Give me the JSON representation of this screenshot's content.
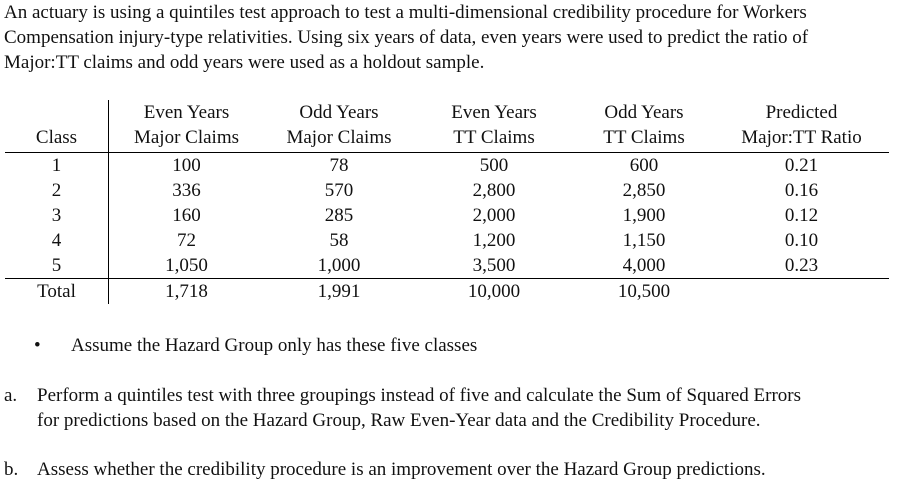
{
  "intro_lines": [
    "An actuary is using a quintiles test approach to test a multi-dimensional credibility procedure for Workers",
    "Compensation injury-type relativities. Using six years of data, even years were used to predict the ratio of",
    "Major:TT claims and odd years were used as a holdout sample."
  ],
  "table": {
    "headers": [
      [
        "",
        "Class"
      ],
      [
        "Even Years",
        "Major Claims"
      ],
      [
        "Odd Years",
        "Major Claims"
      ],
      [
        "Even Years",
        "TT Claims"
      ],
      [
        "Odd Years",
        "TT Claims"
      ],
      [
        "Predicted",
        "Major:TT Ratio"
      ]
    ],
    "rows": [
      [
        "1",
        "100",
        "78",
        "500",
        "600",
        "0.21"
      ],
      [
        "2",
        "336",
        "570",
        "2,800",
        "2,850",
        "0.16"
      ],
      [
        "3",
        "160",
        "285",
        "2,000",
        "1,900",
        "0.12"
      ],
      [
        "4",
        "72",
        "58",
        "1,200",
        "1,150",
        "0.10"
      ],
      [
        "5",
        "1,050",
        "1,000",
        "3,500",
        "4,000",
        "0.23"
      ]
    ],
    "total": [
      "Total",
      "1,718",
      "1,991",
      "10,000",
      "10,500",
      ""
    ]
  },
  "bullet": {
    "symbol": "•",
    "text": "Assume the Hazard Group only has these five classes"
  },
  "questions": [
    {
      "label": "a.",
      "lines": [
        "Perform a quintiles test with three groupings instead of five and calculate the Sum of Squared Errors",
        "for predictions based on the Hazard Group, Raw Even-Year data and the Credibility Procedure."
      ]
    },
    {
      "label": "b.",
      "lines": [
        "Assess whether the credibility procedure is an improvement over the Hazard Group predictions."
      ]
    }
  ]
}
